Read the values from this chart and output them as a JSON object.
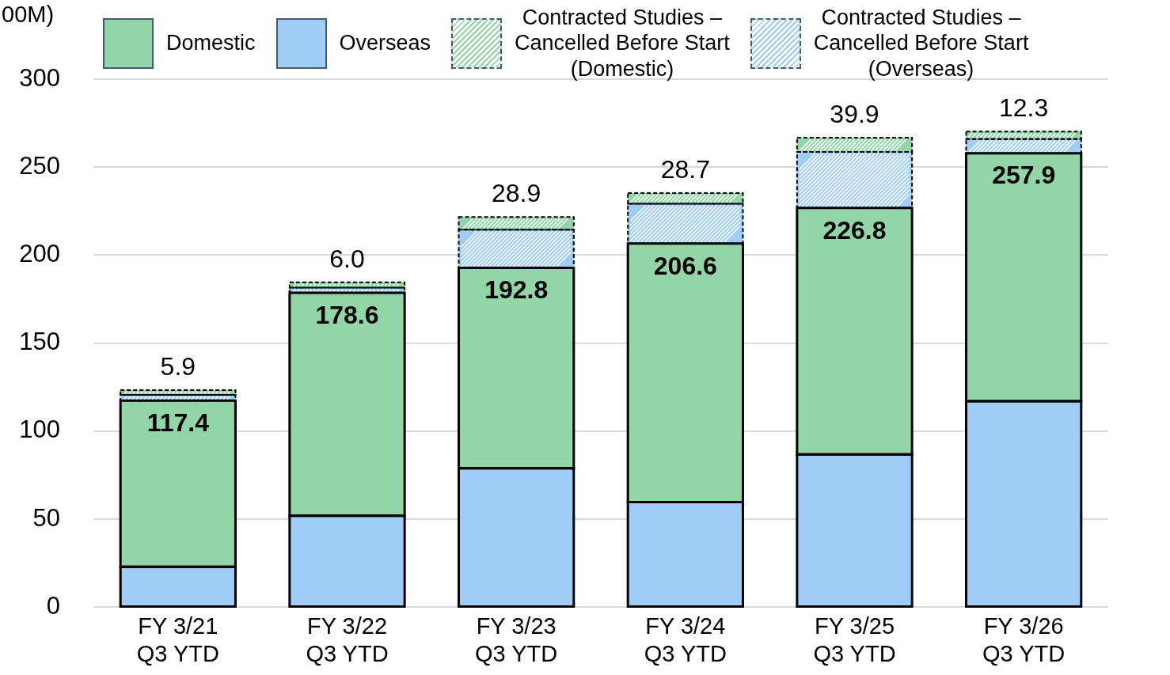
{
  "chart_data": {
    "type": "bar",
    "stacked": true,
    "ylabel": "00M)",
    "categories": [
      "FY 3/21\nQ3 YTD",
      "FY 3/22\nQ3 YTD",
      "FY 3/23\nQ3 YTD",
      "FY 3/24\nQ3 YTD",
      "FY 3/25\nQ3 YTD",
      "FY 3/26\nQ3 YTD"
    ],
    "series": [
      {
        "name": "Overseas",
        "color": "#9fcdf7",
        "values": [
          23.0,
          52.0,
          79.0,
          59.7,
          86.8,
          117.1
        ]
      },
      {
        "name": "Domestic",
        "color": "#92d6a8",
        "values": [
          94.4,
          126.6,
          113.8,
          146.9,
          140.0,
          140.8
        ]
      },
      {
        "name": "Contracted Studies –\nCancelled Before Start\n(Overseas)",
        "color": "#9fcdf7",
        "line_style": "dashed",
        "values": [
          3.2,
          3.0,
          21.7,
          22.6,
          31.8,
          8.1
        ]
      },
      {
        "name": "Contracted Studies –\nCancelled Before Start\n(Domestic)",
        "color": "#92d6a8",
        "line_style": "dashed",
        "values": [
          2.7,
          3.0,
          7.2,
          6.1,
          8.1,
          4.2
        ]
      }
    ],
    "annotations": [
      {
        "text": "117.4",
        "x": "FY 3/21\nQ3 YTD",
        "y": 117.4
      },
      {
        "text": "178.6",
        "x": "FY 3/22\nQ3 YTD",
        "y": 178.6
      },
      {
        "text": "192.8",
        "x": "FY 3/23\nQ3 YTD",
        "y": 192.8
      },
      {
        "text": "206.6",
        "x": "FY 3/24\nQ3 YTD",
        "y": 206.6
      },
      {
        "text": "226.8",
        "x": "FY 3/25\nQ3 YTD",
        "y": 226.8
      },
      {
        "text": "257.9",
        "x": "FY 3/26\nQ3 YTD",
        "y": 257.9
      },
      {
        "text": "5.9",
        "x": "FY 3/21\nQ3 YTD",
        "y": 123.3
      },
      {
        "text": "6.0",
        "x": "FY 3/22\nQ3 YTD",
        "y": 184.6
      },
      {
        "text": "28.9",
        "x": "FY 3/23\nQ3 YTD",
        "y": 221.7
      },
      {
        "text": "28.7",
        "x": "FY 3/24\nQ3 YTD",
        "y": 235.3
      },
      {
        "text": "39.9",
        "x": "FY 3/25\nQ3 YTD",
        "y": 266.7
      },
      {
        "text": "12.3",
        "x": "FY 3/26\nQ3 YTD",
        "y": 270.2
      }
    ],
    "ylim": [
      0,
      300
    ],
    "yticks": [
      0,
      50,
      100,
      150,
      200,
      250,
      300
    ],
    "grid": "y",
    "legend": "top"
  }
}
